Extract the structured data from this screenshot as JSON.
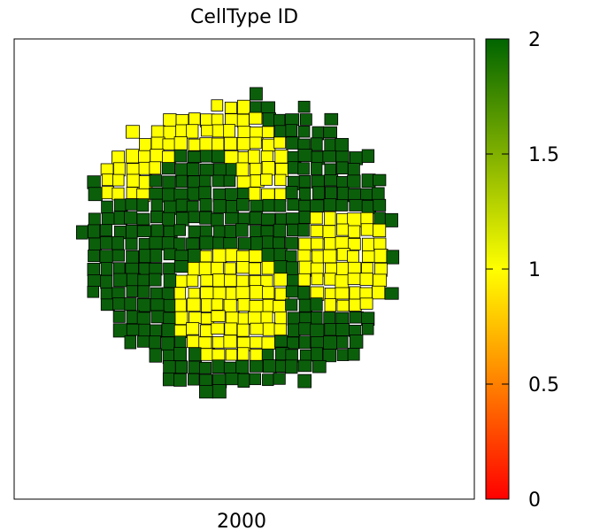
{
  "chart_data": {
    "type": "heatmap",
    "title": "CellType ID",
    "xlabel": "2000",
    "ylabel": "",
    "colorbar": {
      "range": [
        0,
        2
      ],
      "ticks": [
        0,
        0.5,
        1,
        1.5,
        2
      ],
      "tick_labels": [
        "0",
        "0.5",
        "1",
        "1.5",
        "2"
      ],
      "colormap": [
        {
          "value": 0,
          "color": "#ff0000"
        },
        {
          "value": 0.5,
          "color": "#ff8000"
        },
        {
          "value": 1,
          "color": "#ffff00"
        },
        {
          "value": 1.5,
          "color": "#80b000"
        },
        {
          "value": 2,
          "color": "#006400"
        }
      ]
    },
    "categories": [
      {
        "id": 1,
        "color": "#ffff00"
      },
      {
        "id": 2,
        "color": "#0b5f0b"
      }
    ],
    "regions": [
      {
        "id": 2,
        "shape": "colony",
        "center": [
          0.49,
          0.45
        ],
        "radius": 0.32
      },
      {
        "id": 1,
        "shape": "left-arc",
        "center": [
          0.4,
          0.34
        ],
        "radius": 0.22
      },
      {
        "id": 1,
        "shape": "blob",
        "center": [
          0.47,
          0.58
        ],
        "radius": 0.12
      },
      {
        "id": 1,
        "shape": "right-arc",
        "center": [
          0.72,
          0.48
        ],
        "radius": 0.11
      }
    ],
    "grid": false
  }
}
